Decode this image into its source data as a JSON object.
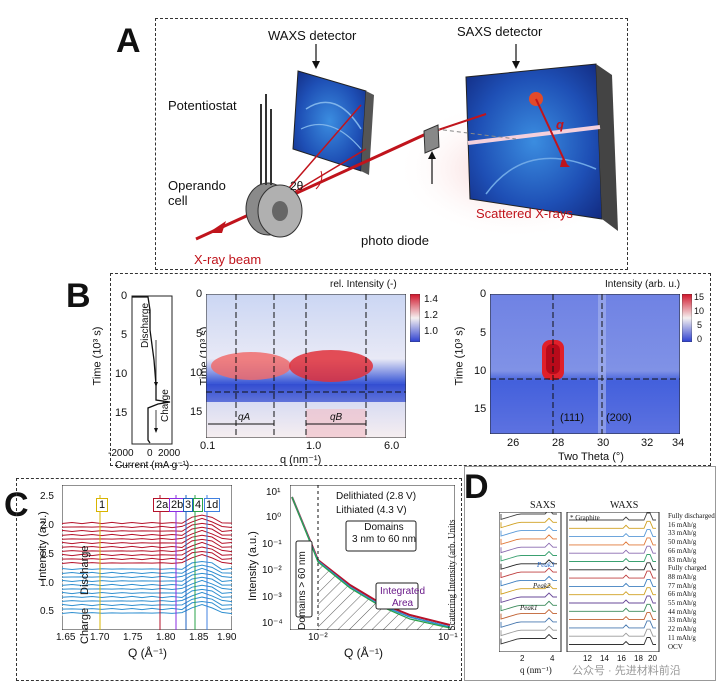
{
  "panels": {
    "a": {
      "letter": "A",
      "waxs_detector": "WAXS detector",
      "saxs_detector": "SAXS detector",
      "potentiostat": "Potentiostat",
      "operando_cell": "Operando\ncell",
      "two_theta": "2θ",
      "q": "q",
      "scattered": "Scattered X-rays",
      "photo_diode": "photo diode",
      "beam": "X-ray beam"
    },
    "b": {
      "letter": "B",
      "left": {
        "ylabel": "Time (10³ s)",
        "xlabel": "Current (mA g⁻¹)",
        "yticks": [
          "0",
          "5",
          "10",
          "15"
        ],
        "xticks": [
          "-2000",
          "0",
          "2000"
        ],
        "discharge": "Discharge",
        "charge": "Charge"
      },
      "mid": {
        "title": "rel. Intensity (-)",
        "ylabel": "Time (10³ s)",
        "xlabel": "q (nm⁻¹)",
        "yticks": [
          "0",
          "5",
          "10",
          "15"
        ],
        "xticks": [
          "0.1",
          "1.0",
          "6.0"
        ],
        "qa": "qA",
        "qb": "qB",
        "cbar": [
          "1.4",
          "1.2",
          "1.0"
        ]
      },
      "right": {
        "title": "Intensity (arb. u.)",
        "ylabel": "Time (10³ s)",
        "xlabel": "Two Theta (°)",
        "yticks": [
          "0",
          "5",
          "10",
          "15"
        ],
        "xticks": [
          "26",
          "28",
          "30",
          "32",
          "34"
        ],
        "p111": "(111)",
        "p200": "(200)",
        "cbar": [
          "15",
          "10",
          "5",
          "0"
        ]
      }
    },
    "c": {
      "letter": "C",
      "left": {
        "ylabel": "Intensity (a.u.)",
        "xlabel": "Q (Å⁻¹)",
        "yticks": [
          "0.5",
          "1.0",
          "1.5",
          "2.0",
          "2.5"
        ],
        "xticks": [
          "1.65",
          "1.70",
          "1.75",
          "1.80",
          "1.85",
          "1.90"
        ],
        "discharge": "Discharge",
        "charge": "Charge",
        "markers": [
          "1",
          "2a",
          "2b",
          "3",
          "4",
          "1d"
        ]
      },
      "right": {
        "ylabel": "Intensity (a.u.)",
        "xlabel": "Q (Å⁻¹)",
        "yticks": [
          "10⁻⁴",
          "10⁻³",
          "10⁻²",
          "10⁻¹",
          "10⁰",
          "10¹"
        ],
        "xticks": [
          "10⁻²",
          "10⁻¹"
        ],
        "legend": [
          "Delithiated (2.8 V)",
          "Lithiated (4.3 V)"
        ],
        "domains_large": "Domains > 60 nm",
        "domains_small": "Domains\n3 nm to 60 nm",
        "integrated": "Integrated\nArea"
      }
    },
    "d": {
      "letter": "D",
      "saxs": "SAXS",
      "waxs": "WAXS",
      "ylabel": "Scattering Intensity (arb. Units",
      "xlabel": "q (nm⁻¹)",
      "graphite": "* Graphite",
      "peaks": [
        "Peak1",
        "Peak2",
        "Peak3"
      ],
      "xticks_left": [
        "2",
        "4"
      ],
      "xticks_right": [
        "12",
        "14",
        "16",
        "18",
        "20"
      ],
      "states": [
        "Fully discharged",
        "16 mAh/g",
        "33 mAh/g",
        "50 mAh/g",
        "66 mAh/g",
        "83 mAh/g",
        "Fully charged",
        "88 mAh/g",
        "77 mAh/g",
        "66 mAh/g",
        "55 mAh/g",
        "44 mAh/g",
        "33 mAh/g",
        "22 mAh/g",
        "11 mAh/g",
        "OCV"
      ],
      "watermark": "公众号 · 先进材料前沿"
    }
  },
  "colors": {
    "red": "#b5122a",
    "blue": "#2f8fd0",
    "beam": "#c0141c"
  }
}
